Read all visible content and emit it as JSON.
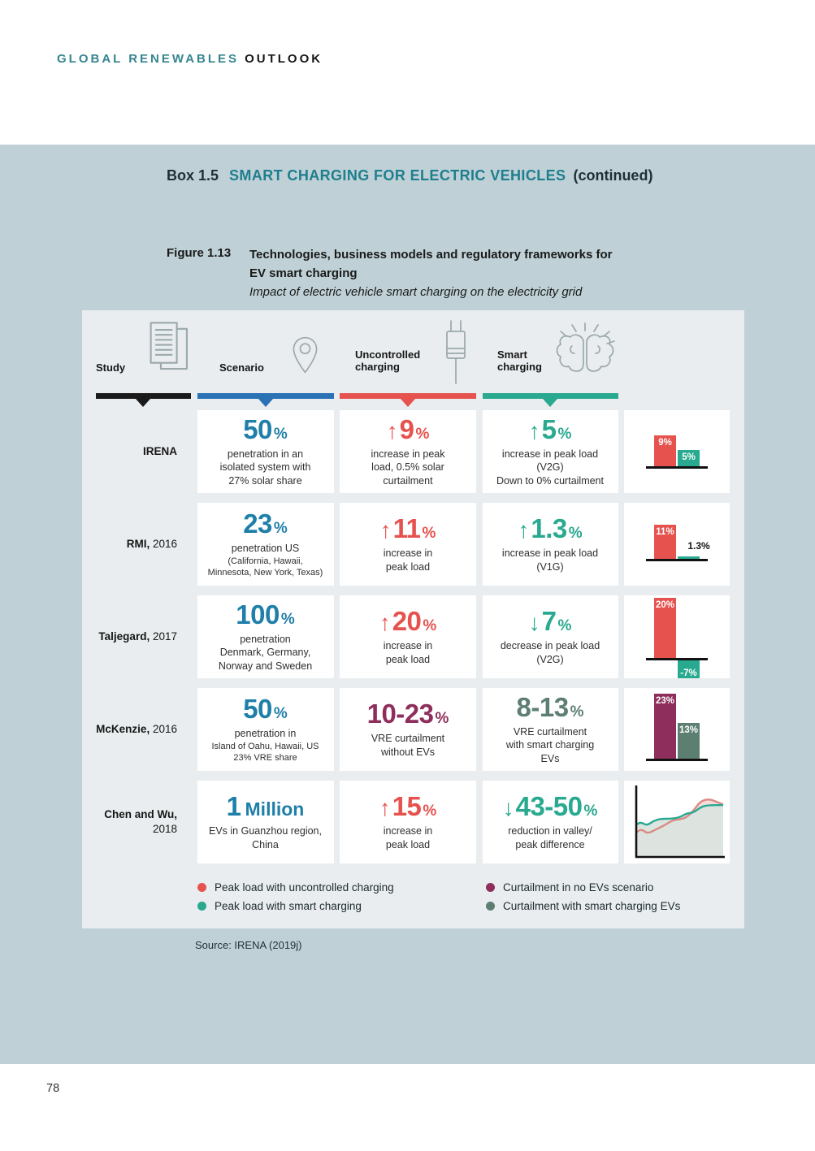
{
  "header": {
    "brand_teal": "GLOBAL RENEWABLES",
    "brand_black": "OUTLOOK"
  },
  "box": {
    "label": "Box 1.5",
    "title": "SMART CHARGING FOR ELECTRIC VEHICLES",
    "continued": "(continued)"
  },
  "figure": {
    "label": "Figure 1.13",
    "title_line1": "Technologies, business models and regulatory frameworks for",
    "title_line2": "EV smart charging",
    "subtitle": "Impact of electric vehicle smart charging on the electricity grid"
  },
  "colors": {
    "box_bg": "#bfd1d6",
    "panel_bg": "#e9edef",
    "title_teal": "#1e7e8e",
    "value_blue": "#1f7fa9"
  },
  "series_colors": {
    "uncontrolled": "#e6534f",
    "smart": "#29a98f",
    "curtailment_no_evs": "#8e2e5c",
    "curtailment_smart": "#5d7f72"
  },
  "table": {
    "columns": [
      {
        "label": "Study",
        "icon": "documents-icon",
        "bar_color": "#1a1a1a"
      },
      {
        "label": "Scenario",
        "icon": "map-pin-icon",
        "bar_color": "#2a72b4"
      },
      {
        "label": "Uncontrolled\ncharging",
        "icon": "plug-icon",
        "bar_color": "#e6534f"
      },
      {
        "label": "Smart\ncharging",
        "icon": "brain-icon",
        "bar_color": "#29a98f"
      }
    ],
    "rows": [
      {
        "study": {
          "name": "IRENA",
          "year": ""
        },
        "scenario": {
          "arrow": "",
          "value": "50",
          "unit": "%",
          "desc": "penetration in an\nisolated system with\n27% solar share"
        },
        "uncontrolled": {
          "arrow": "↑",
          "value": "9",
          "unit": "%",
          "color": "#e6534f",
          "desc": "increase in peak\nload, 0.5% solar\ncurtailment"
        },
        "smart": {
          "arrow": "↑",
          "value": "5",
          "unit": "%",
          "color": "#29a98f",
          "desc": "increase in peak load\n(V2G)\nDown to 0% curtailment"
        }
      },
      {
        "study": {
          "name": "RMI,",
          "year": " 2016"
        },
        "scenario": {
          "arrow": "",
          "value": "23",
          "unit": "%",
          "desc": "penetration US",
          "desc_small": "(California, Hawaii,\nMinnesota, New York, Texas)"
        },
        "uncontrolled": {
          "arrow": "↑",
          "value": "11",
          "unit": "%",
          "color": "#e6534f",
          "desc": "increase in\npeak load"
        },
        "smart": {
          "arrow": "↑",
          "value": "1.3",
          "unit": "%",
          "color": "#29a98f",
          "desc": "increase in peak load\n(V1G)"
        }
      },
      {
        "study": {
          "name": "Taljegard,",
          "year": " 2017"
        },
        "scenario": {
          "arrow": "",
          "value": "100",
          "unit": "%",
          "desc": "penetration\nDenmark, Germany,\nNorway and Sweden"
        },
        "uncontrolled": {
          "arrow": "↑",
          "value": "20",
          "unit": "%",
          "color": "#e6534f",
          "desc": "increase in\npeak load"
        },
        "smart": {
          "arrow": "↓",
          "value": " 7",
          "unit": "%",
          "color": "#29a98f",
          "desc": "decrease in peak load\n(V2G)"
        }
      },
      {
        "study": {
          "name": "McKenzie,",
          "year": " 2016"
        },
        "scenario": {
          "arrow": "",
          "value": "50",
          "unit": "%",
          "desc": "penetration in",
          "desc_small": "Island of Oahu, Hawaii, US\n23% VRE share"
        },
        "uncontrolled": {
          "arrow": "",
          "value": "10-23",
          "unit": "%",
          "color": "#8e2e5c",
          "desc": "VRE curtailment\nwithout EVs"
        },
        "smart": {
          "arrow": "",
          "value": "8-13",
          "unit": "%",
          "color": "#5d7f72",
          "desc": "VRE curtailment\nwith smart charging\nEVs"
        }
      },
      {
        "study": {
          "name": "Chen and Wu,",
          "year": " 2018"
        },
        "scenario": {
          "arrow": "",
          "value": "1",
          "unit": "Million",
          "desc": "EVs in Guanzhou region,\nChina"
        },
        "uncontrolled": {
          "arrow": "↑",
          "value": "15",
          "unit": "%",
          "color": "#e6534f",
          "desc": "increase in\npeak load"
        },
        "smart": {
          "arrow": "↓",
          "value": " 43-50",
          "unit": "%",
          "color": "#29a98f",
          "desc": "reduction in valley/\npeak difference"
        }
      }
    ]
  },
  "chart_data": [
    {
      "type": "bar",
      "study": "IRENA",
      "unit": "%",
      "bars": [
        {
          "series": "uncontrolled",
          "value": 9,
          "label": "9%"
        },
        {
          "series": "smart",
          "value": 5,
          "label": "5%"
        }
      ]
    },
    {
      "type": "bar",
      "study": "RMI, 2016",
      "unit": "%",
      "bars": [
        {
          "series": "uncontrolled",
          "value": 11,
          "label": "11%"
        },
        {
          "series": "smart",
          "value": 1.3,
          "label": "1.3%",
          "label_style": "outside"
        }
      ]
    },
    {
      "type": "bar",
      "study": "Taljegard, 2017",
      "unit": "%",
      "bars": [
        {
          "series": "uncontrolled",
          "value": 20,
          "label": "20%"
        },
        {
          "series": "smart",
          "value": -7,
          "label": "-7%"
        }
      ]
    },
    {
      "type": "bar",
      "study": "McKenzie, 2016",
      "unit": "%",
      "bars": [
        {
          "series": "curtailment_no_evs",
          "value": 23,
          "label": "23%"
        },
        {
          "series": "curtailment_smart",
          "value": 13,
          "label": "13%"
        }
      ]
    },
    {
      "type": "line",
      "study": "Chen and Wu, 2018",
      "description": "load profile with uncontrolled vs smart charging",
      "series": [
        {
          "name": "uncontrolled",
          "points": [
            [
              0,
              0.64
            ],
            [
              0.06,
              0.59
            ],
            [
              0.13,
              0.66
            ],
            [
              0.22,
              0.6
            ],
            [
              0.32,
              0.54
            ],
            [
              0.42,
              0.46
            ],
            [
              0.5,
              0.45
            ],
            [
              0.58,
              0.42
            ],
            [
              0.66,
              0.32
            ],
            [
              0.74,
              0.18
            ],
            [
              0.84,
              0.15
            ],
            [
              0.92,
              0.19
            ],
            [
              1,
              0.23
            ]
          ]
        },
        {
          "name": "smart",
          "points": [
            [
              0,
              0.52
            ],
            [
              0.06,
              0.49
            ],
            [
              0.12,
              0.54
            ],
            [
              0.2,
              0.47
            ],
            [
              0.28,
              0.44
            ],
            [
              0.4,
              0.44
            ],
            [
              0.5,
              0.42
            ],
            [
              0.58,
              0.36
            ],
            [
              0.66,
              0.35
            ],
            [
              0.74,
              0.27
            ],
            [
              0.82,
              0.24
            ],
            [
              1,
              0.24
            ]
          ]
        }
      ]
    }
  ],
  "legend": [
    {
      "series": "uncontrolled",
      "label": "Peak load with uncontrolled charging"
    },
    {
      "series": "smart",
      "label": "Peak load with smart charging"
    },
    {
      "series": "curtailment_no_evs",
      "label": "Curtailment in no EVs scenario"
    },
    {
      "series": "curtailment_smart",
      "label": "Curtailment with smart charging EVs"
    }
  ],
  "source": "Source: IRENA (2019j)",
  "page_number": "78"
}
